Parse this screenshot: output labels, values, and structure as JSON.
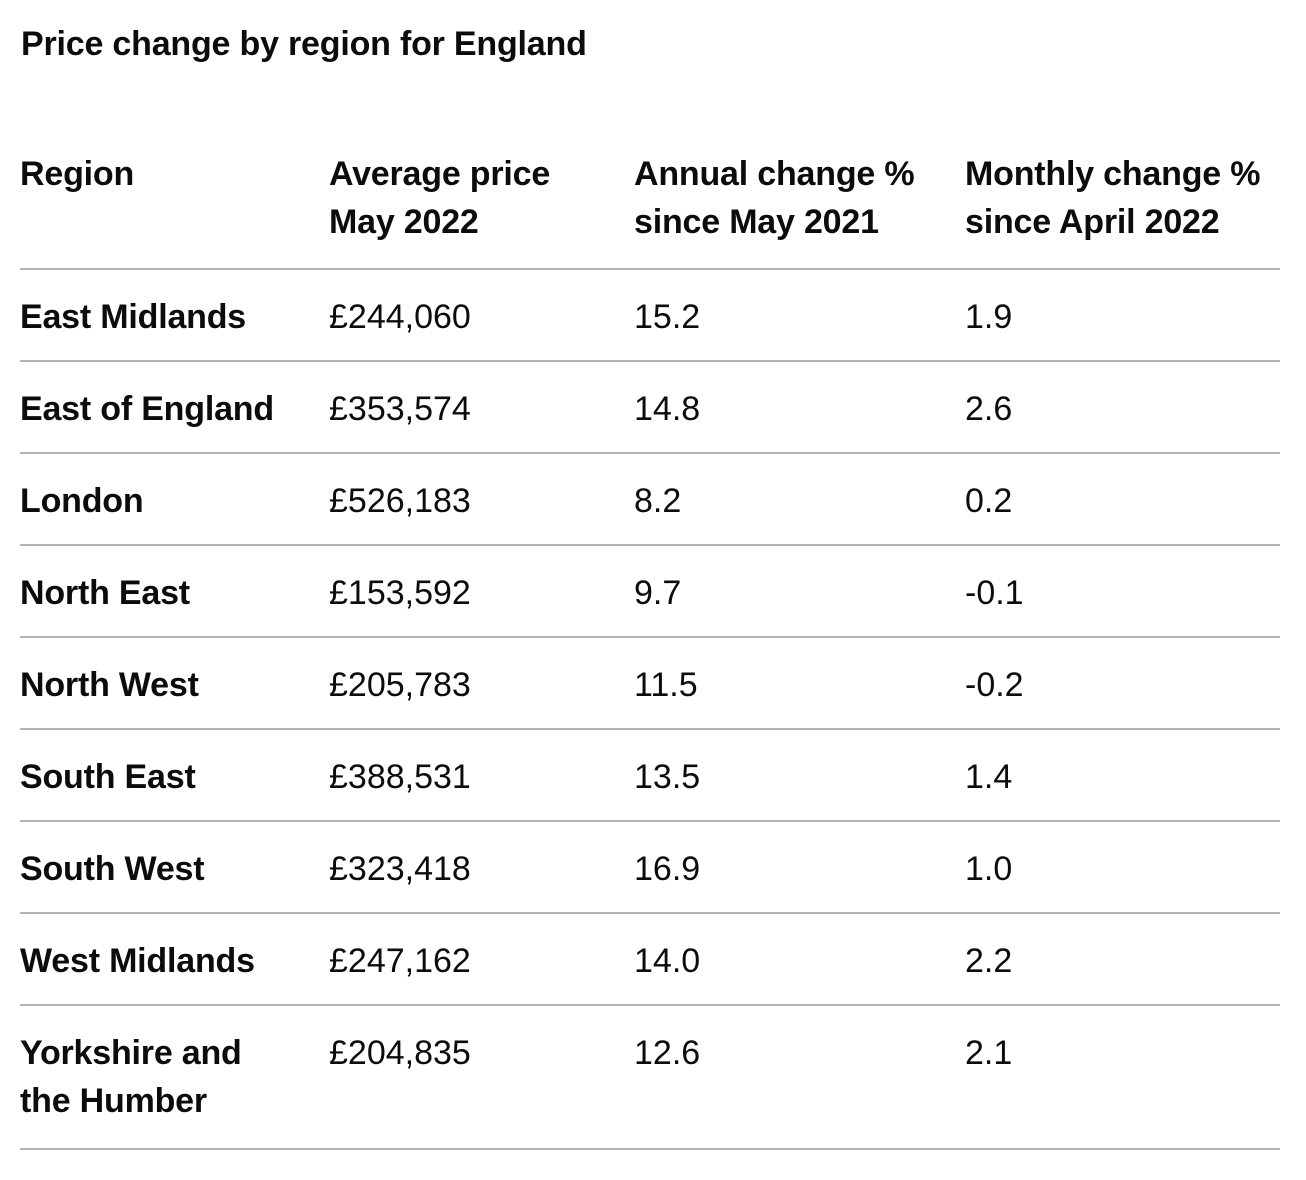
{
  "caption": "Price change by region for England",
  "headers": {
    "region": "Region",
    "price_line1": "Average price",
    "price_line2": "May 2022",
    "annual_line1": "Annual change %",
    "annual_line2": "since May 2021",
    "monthly_line1": "Monthly change %",
    "monthly_line2": "since April 2022"
  },
  "rows": [
    {
      "region": "East Midlands",
      "price": "£244,060",
      "annual": "15.2",
      "monthly": "1.9"
    },
    {
      "region": "East of England",
      "price": "£353,574",
      "annual": "14.8",
      "monthly": "2.6"
    },
    {
      "region": "London",
      "price": "£526,183",
      "annual": "8.2",
      "monthly": "0.2"
    },
    {
      "region": "North East",
      "price": "£153,592",
      "annual": "9.7",
      "monthly": "-0.1"
    },
    {
      "region": "North West",
      "price": "£205,783",
      "annual": "11.5",
      "monthly": "-0.2"
    },
    {
      "region": "South East",
      "price": "£388,531",
      "annual": "13.5",
      "monthly": "1.4"
    },
    {
      "region": "South West",
      "price": "£323,418",
      "annual": "16.9",
      "monthly": "1.0"
    },
    {
      "region": "West Midlands",
      "price": "£247,162",
      "annual": "14.0",
      "monthly": "2.2"
    },
    {
      "region_line1": "Yorkshire and",
      "region_line2": "the Humber",
      "price": "£204,835",
      "annual": "12.6",
      "monthly": "2.1"
    }
  ]
}
